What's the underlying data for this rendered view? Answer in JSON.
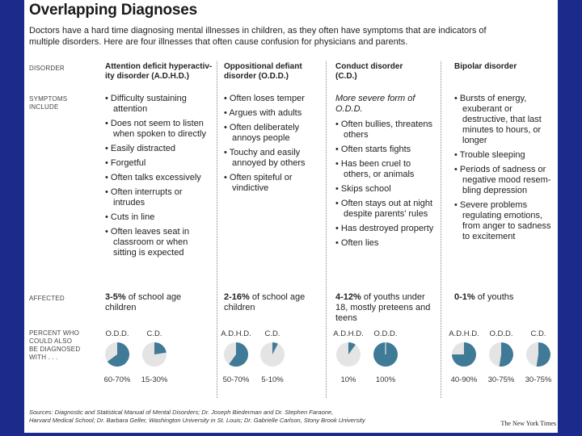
{
  "title": "Overlapping Diagnoses",
  "subtitle": "Doctors have a hard time diagnosing mental illnesses in children, as they often have symptoms that are indicators of multiple disorders. Here are four illnesses that often cause confusion for physicians and parents.",
  "row_labels": {
    "disorder": "DISORDER",
    "symptoms_line1": "SYMPTOMS",
    "symptoms_line2": "INCLUDE",
    "affected": "AFFECTED",
    "percent_line1": "PERCENT WHO",
    "percent_line2": "COULD ALSO",
    "percent_line3": "BE DIAGNOSED",
    "percent_line4": "WITH . . ."
  },
  "disorders": [
    {
      "name_line1": "Attention deficit hyperactiv-",
      "name_line2": "ity disorder (A.D.H.D.)",
      "note": "",
      "symptoms": [
        "Difficulty sustaining attention",
        "Does not seem to listen when spoken to directly",
        "Easily distracted",
        "Forgetful",
        "Often talks excessively",
        "Often interrupts or intrudes",
        "Cuts in line",
        "Often leaves seat in classroom or when sitting is expected"
      ],
      "affected": "3-5% of school age children",
      "affected_bold": "3-5%",
      "pies": [
        {
          "label": "O.D.D.",
          "value": 65,
          "text": "60-70%"
        },
        {
          "label": "C.D.",
          "value": 22.5,
          "text": "15-30%"
        }
      ]
    },
    {
      "name_line1": "Oppositional defiant",
      "name_line2": "disorder (O.D.D.)",
      "note": "",
      "symptoms": [
        "Often loses temper",
        "Argues with adults",
        "Often deliberately annoys people",
        "Touchy and easily annoyed by others",
        "Often spiteful or vindictive"
      ],
      "affected": "2-16% of school age children",
      "affected_bold": "2-16%",
      "pies": [
        {
          "label": "A.D.H.D.",
          "value": 60,
          "text": "50-70%"
        },
        {
          "label": "C.D.",
          "value": 7.5,
          "text": "5-10%"
        }
      ]
    },
    {
      "name_line1": "Conduct disorder",
      "name_line2": "(C.D.)",
      "note": "More severe form of O.D.D.",
      "symptoms": [
        "Often bullies, threatens others",
        "Often starts fights",
        "Has been cruel to others, or animals",
        "Skips school",
        "Often stays out at night despite parents' rules",
        "Has destroyed property",
        "Often lies"
      ],
      "affected": "4-12% of youths under 18, mostly preteens and teens",
      "affected_bold": "4-12%",
      "pies": [
        {
          "label": "A.D.H.D.",
          "value": 10,
          "text": "10%"
        },
        {
          "label": "O.D.D.",
          "value": 100,
          "text": "100%"
        }
      ]
    },
    {
      "name_line1": "Bipolar disorder",
      "name_line2": "",
      "note": "",
      "symptoms": [
        "Bursts of energy, exuberant or destructive, that last minutes to hours, or longer",
        "Trouble sleeping",
        "Periods of sadness or negative mood resem-bling depression",
        "Severe problems regulating emotions, from anger to sadness to excitement"
      ],
      "affected": "0-1% of youths",
      "affected_bold": "0-1%",
      "pies": [
        {
          "label": "A.D.H.D.",
          "value": 75,
          "text": "40-90%"
        },
        {
          "label": "O.D.D.",
          "value": 52.5,
          "text": "30-75%"
        },
        {
          "label": "C.D.",
          "value": 52.5,
          "text": "30-75%"
        }
      ]
    }
  ],
  "sources_line1": "Sources: Diagnostic and Statistical Manual of Mental Disorders; Dr. Joseph Biederman and Dr. Stephen Faraone,",
  "sources_line2": "Harvard Medical School; Dr. Barbara Geller, Washington University in St. Louis; Dr. Gabrielle Carlson, Stony Brook University",
  "credit": "The New York Times",
  "colors": {
    "pie_fill": "#3f7a96",
    "pie_bg": "#e4e4e4",
    "page_bg": "#1c2a8c"
  }
}
